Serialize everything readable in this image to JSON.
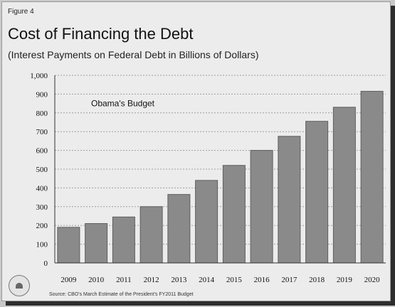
{
  "figure_label": "Figure 4",
  "title": "Cost of Financing the Debt",
  "subtitle": "(Interest Payments on Federal Debt in Billions of Dollars)",
  "source": "Source: CBO's March Estimate of the President's FY2011 Budget",
  "colors": {
    "bar": "#8a8a8a",
    "bar_edge": "#5e5e5e",
    "grid": "#9e9e9e",
    "axis": "#333333",
    "text": "#111111"
  },
  "chart_data": {
    "type": "bar",
    "title": "Cost of Financing the Debt",
    "subtitle": "(Interest Payments on Federal Debt in Billions of Dollars)",
    "categories": [
      "2009",
      "2010",
      "2011",
      "2012",
      "2013",
      "2014",
      "2015",
      "2016",
      "2017",
      "2018",
      "2019",
      "2020"
    ],
    "values": [
      190,
      210,
      245,
      300,
      365,
      440,
      520,
      600,
      675,
      755,
      830,
      915
    ],
    "ylim": [
      0,
      1000
    ],
    "y_ticks": [
      0,
      100,
      200,
      300,
      400,
      500,
      600,
      700,
      800,
      900,
      1000
    ],
    "y_tick_labels": [
      "0",
      "100",
      "200",
      "300",
      "400",
      "500",
      "600",
      "700",
      "800",
      "900",
      "1,000"
    ],
    "grid": true,
    "legend": "none",
    "annotation": "Obama's Budget"
  }
}
